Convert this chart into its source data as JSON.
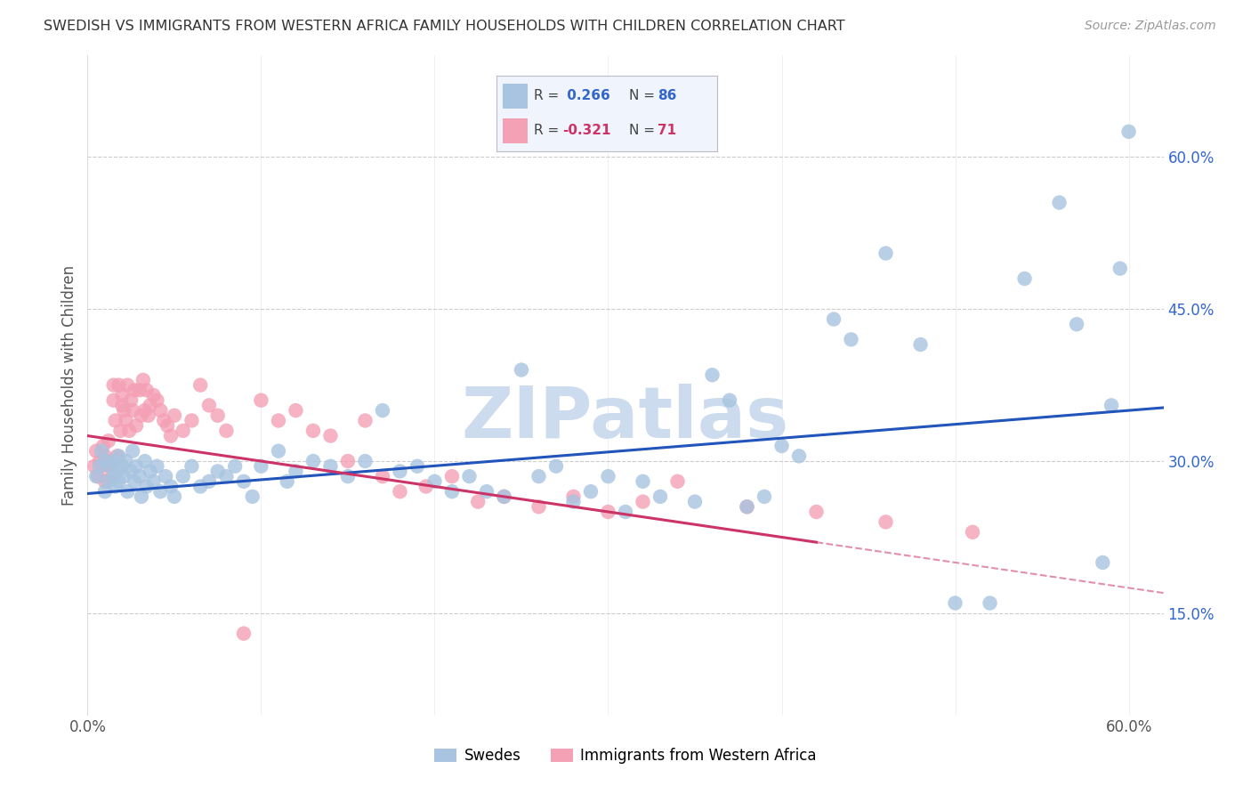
{
  "title": "SWEDISH VS IMMIGRANTS FROM WESTERN AFRICA FAMILY HOUSEHOLDS WITH CHILDREN CORRELATION CHART",
  "source": "Source: ZipAtlas.com",
  "ylabel": "Family Households with Children",
  "watermark": "ZIPatlas",
  "swedes_R": 0.266,
  "swedes_N": 86,
  "immigrants_R": -0.321,
  "immigrants_N": 71,
  "xlim": [
    0.0,
    0.62
  ],
  "ylim": [
    0.05,
    0.7
  ],
  "yticks": [
    0.15,
    0.3,
    0.45,
    0.6
  ],
  "ytick_labels": [
    "15.0%",
    "30.0%",
    "45.0%",
    "60.0%"
  ],
  "xtick_labels": [
    "0.0%",
    "",
    "",
    "",
    "",
    "",
    "60.0%"
  ],
  "swedes_color": "#a8c4e0",
  "immigrants_color": "#f4a0b5",
  "swedes_line_color": "#2255bb",
  "immigrants_line_color": "#cc3366",
  "grid_color": "#cccccc",
  "title_color": "#333333",
  "source_color": "#999999",
  "watermark_color": "#ccdcee",
  "background_color": "#ffffff",
  "swedes_x": [
    0.005,
    0.007,
    0.008,
    0.01,
    0.01,
    0.012,
    0.013,
    0.015,
    0.015,
    0.016,
    0.017,
    0.018,
    0.018,
    0.02,
    0.021,
    0.022,
    0.023,
    0.025,
    0.026,
    0.027,
    0.028,
    0.03,
    0.031,
    0.033,
    0.034,
    0.036,
    0.038,
    0.04,
    0.042,
    0.045,
    0.048,
    0.05,
    0.055,
    0.06,
    0.065,
    0.07,
    0.075,
    0.08,
    0.085,
    0.09,
    0.095,
    0.1,
    0.11,
    0.115,
    0.12,
    0.13,
    0.14,
    0.15,
    0.16,
    0.17,
    0.18,
    0.19,
    0.2,
    0.21,
    0.22,
    0.23,
    0.24,
    0.25,
    0.26,
    0.27,
    0.28,
    0.29,
    0.3,
    0.31,
    0.32,
    0.33,
    0.35,
    0.36,
    0.37,
    0.38,
    0.39,
    0.4,
    0.41,
    0.43,
    0.44,
    0.46,
    0.48,
    0.5,
    0.52,
    0.54,
    0.56,
    0.57,
    0.585,
    0.59,
    0.595,
    0.6
  ],
  "swedes_y": [
    0.285,
    0.295,
    0.31,
    0.27,
    0.3,
    0.28,
    0.295,
    0.285,
    0.3,
    0.275,
    0.29,
    0.305,
    0.28,
    0.295,
    0.285,
    0.3,
    0.27,
    0.29,
    0.31,
    0.28,
    0.295,
    0.285,
    0.265,
    0.3,
    0.275,
    0.29,
    0.28,
    0.295,
    0.27,
    0.285,
    0.275,
    0.265,
    0.285,
    0.295,
    0.275,
    0.28,
    0.29,
    0.285,
    0.295,
    0.28,
    0.265,
    0.295,
    0.31,
    0.28,
    0.29,
    0.3,
    0.295,
    0.285,
    0.3,
    0.35,
    0.29,
    0.295,
    0.28,
    0.27,
    0.285,
    0.27,
    0.265,
    0.39,
    0.285,
    0.295,
    0.26,
    0.27,
    0.285,
    0.25,
    0.28,
    0.265,
    0.26,
    0.385,
    0.36,
    0.255,
    0.265,
    0.315,
    0.305,
    0.44,
    0.42,
    0.505,
    0.415,
    0.16,
    0.16,
    0.48,
    0.555,
    0.435,
    0.2,
    0.355,
    0.49,
    0.625
  ],
  "immigrants_x": [
    0.004,
    0.005,
    0.006,
    0.007,
    0.008,
    0.009,
    0.01,
    0.01,
    0.011,
    0.012,
    0.013,
    0.014,
    0.015,
    0.015,
    0.016,
    0.017,
    0.018,
    0.019,
    0.02,
    0.02,
    0.021,
    0.022,
    0.023,
    0.024,
    0.025,
    0.026,
    0.027,
    0.028,
    0.03,
    0.031,
    0.032,
    0.033,
    0.034,
    0.035,
    0.036,
    0.038,
    0.04,
    0.042,
    0.044,
    0.046,
    0.048,
    0.05,
    0.055,
    0.06,
    0.065,
    0.07,
    0.075,
    0.08,
    0.09,
    0.1,
    0.11,
    0.12,
    0.13,
    0.14,
    0.15,
    0.16,
    0.17,
    0.18,
    0.195,
    0.21,
    0.225,
    0.24,
    0.26,
    0.28,
    0.3,
    0.32,
    0.34,
    0.38,
    0.42,
    0.46,
    0.51
  ],
  "immigrants_y": [
    0.295,
    0.31,
    0.285,
    0.3,
    0.295,
    0.315,
    0.305,
    0.28,
    0.3,
    0.32,
    0.295,
    0.285,
    0.375,
    0.36,
    0.34,
    0.305,
    0.375,
    0.33,
    0.365,
    0.355,
    0.35,
    0.34,
    0.375,
    0.33,
    0.36,
    0.35,
    0.37,
    0.335,
    0.37,
    0.345,
    0.38,
    0.35,
    0.37,
    0.345,
    0.355,
    0.365,
    0.36,
    0.35,
    0.34,
    0.335,
    0.325,
    0.345,
    0.33,
    0.34,
    0.375,
    0.355,
    0.345,
    0.33,
    0.13,
    0.36,
    0.34,
    0.35,
    0.33,
    0.325,
    0.3,
    0.34,
    0.285,
    0.27,
    0.275,
    0.285,
    0.26,
    0.265,
    0.255,
    0.265,
    0.25,
    0.26,
    0.28,
    0.255,
    0.25,
    0.24,
    0.23
  ]
}
